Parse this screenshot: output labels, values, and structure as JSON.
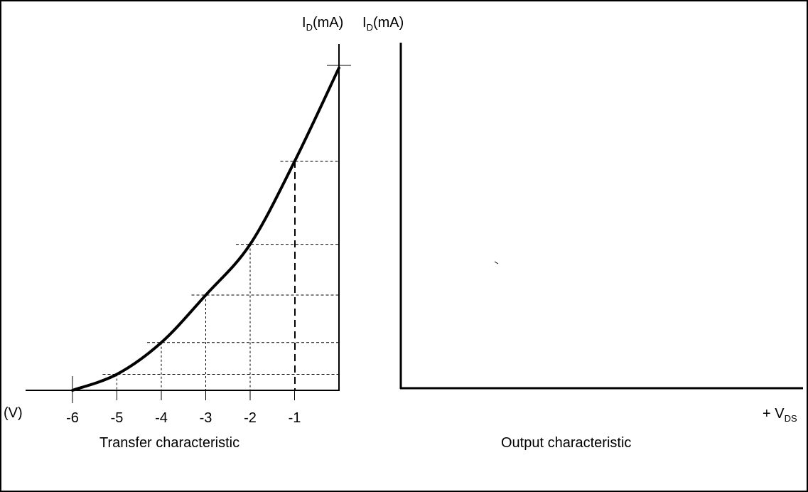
{
  "transfer": {
    "y_axis_label": "I",
    "y_axis_label_sub": "D",
    "y_axis_label_unit": "(mA)",
    "x_axis_unit": "(V)",
    "tick_labels": [
      "-6",
      "-5",
      "-4",
      "-3",
      "-2",
      "-1"
    ],
    "caption": "Transfer characteristic"
  },
  "output": {
    "y_axis_label": "I",
    "y_axis_label_sub": "D",
    "y_axis_label_unit": "(mA)",
    "x_axis_label": "+ V",
    "x_axis_label_sub": "DS",
    "caption": "Output characteristic"
  },
  "chart_data": {
    "type": "line",
    "x": [
      -6,
      -5,
      -4,
      -3,
      -2,
      -1,
      0
    ],
    "y": [
      0,
      0.48,
      1.43,
      2.85,
      4.37,
      6.85,
      9.65
    ]
  }
}
